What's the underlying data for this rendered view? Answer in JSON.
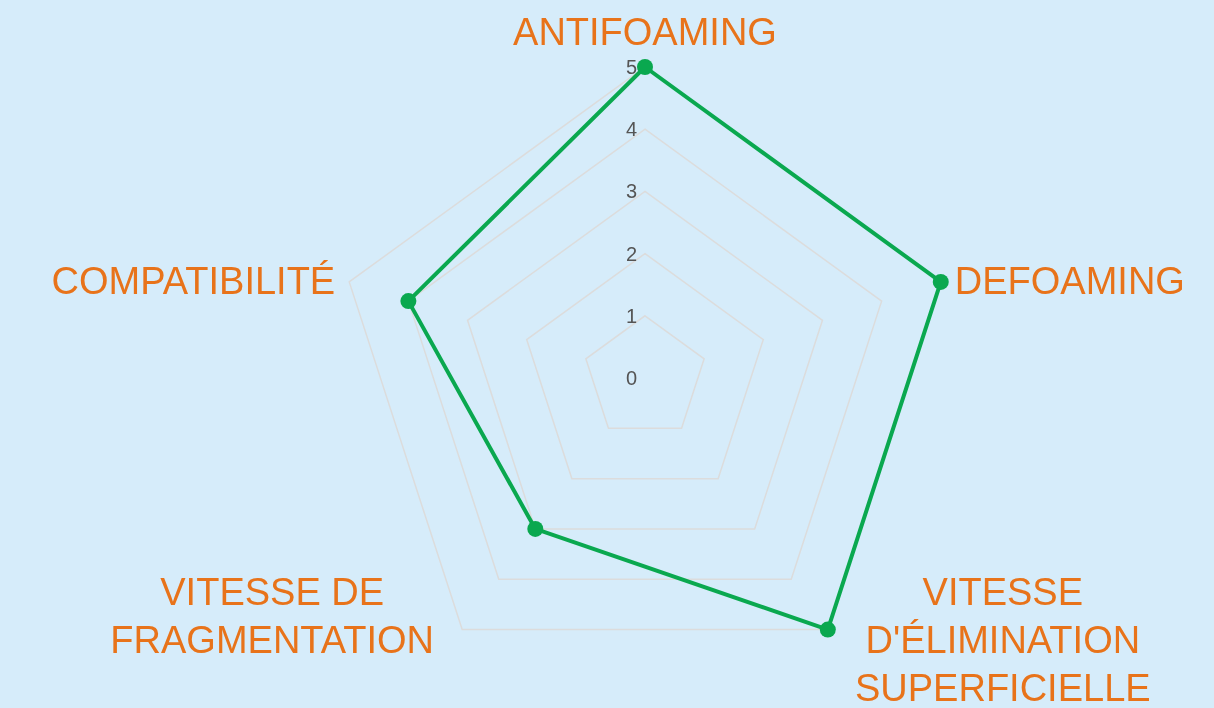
{
  "chart_data": {
    "type": "radar",
    "categories": [
      "ANTIFOAMING",
      "DEFOAMING",
      "VITESSE\nD'ÉLIMINATION\nSUPERFICIELLE",
      "VITESSE DE\nFRAGMENTATION",
      "COMPATIBILITÉ"
    ],
    "series": [
      {
        "color": "#0aa84f",
        "values": [
          5,
          5,
          5,
          3,
          4
        ]
      }
    ],
    "ylim": [
      0,
      5
    ],
    "yticks": [
      0,
      1,
      2,
      3,
      4,
      5
    ],
    "grid": true,
    "marker": "circle",
    "line_style": "solid"
  }
}
